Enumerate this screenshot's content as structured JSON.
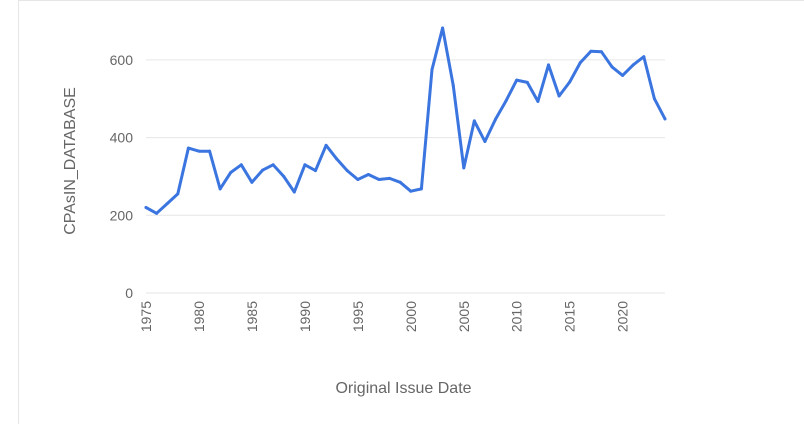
{
  "chart_data": {
    "type": "line",
    "title": "",
    "xlabel": "Original Issue Date",
    "ylabel": "CPAsIN_DATABASE",
    "xlim": [
      1975,
      2024
    ],
    "ylim": [
      0,
      700
    ],
    "x_ticks": [
      "1975",
      "1980",
      "1985",
      "1990",
      "1995",
      "2000",
      "2005",
      "2010",
      "2015",
      "2020"
    ],
    "y_ticks": [
      "0",
      "200",
      "400",
      "600"
    ],
    "grid": true,
    "legend": "none",
    "colors": {
      "line": "#3b75e0",
      "grid": "#e6e6e6",
      "text": "#666666"
    },
    "series": [
      {
        "x": [
          1975,
          1976,
          1977,
          1978,
          1979,
          1980,
          1981,
          1982,
          1983,
          1984,
          1985,
          1986,
          1987,
          1988,
          1989,
          1990,
          1991,
          1992,
          1993,
          1994,
          1995,
          1996,
          1997,
          1998,
          1999,
          2000,
          2001,
          2002,
          2003,
          2004,
          2005,
          2006,
          2007,
          2008,
          2009,
          2010,
          2011,
          2012,
          2013,
          2014,
          2015,
          2016,
          2017,
          2018,
          2019,
          2020,
          2021,
          2022,
          2023,
          2024
        ],
        "values": [
          220,
          205,
          230,
          255,
          373,
          365,
          365,
          268,
          310,
          330,
          285,
          316,
          330,
          300,
          260,
          330,
          315,
          380,
          345,
          315,
          292,
          305,
          292,
          295,
          285,
          262,
          268,
          575,
          682,
          535,
          322,
          443,
          390,
          447,
          495,
          548,
          542,
          493,
          587,
          507,
          543,
          593,
          622,
          621,
          582,
          560,
          587,
          608,
          500,
          448
        ]
      }
    ]
  }
}
